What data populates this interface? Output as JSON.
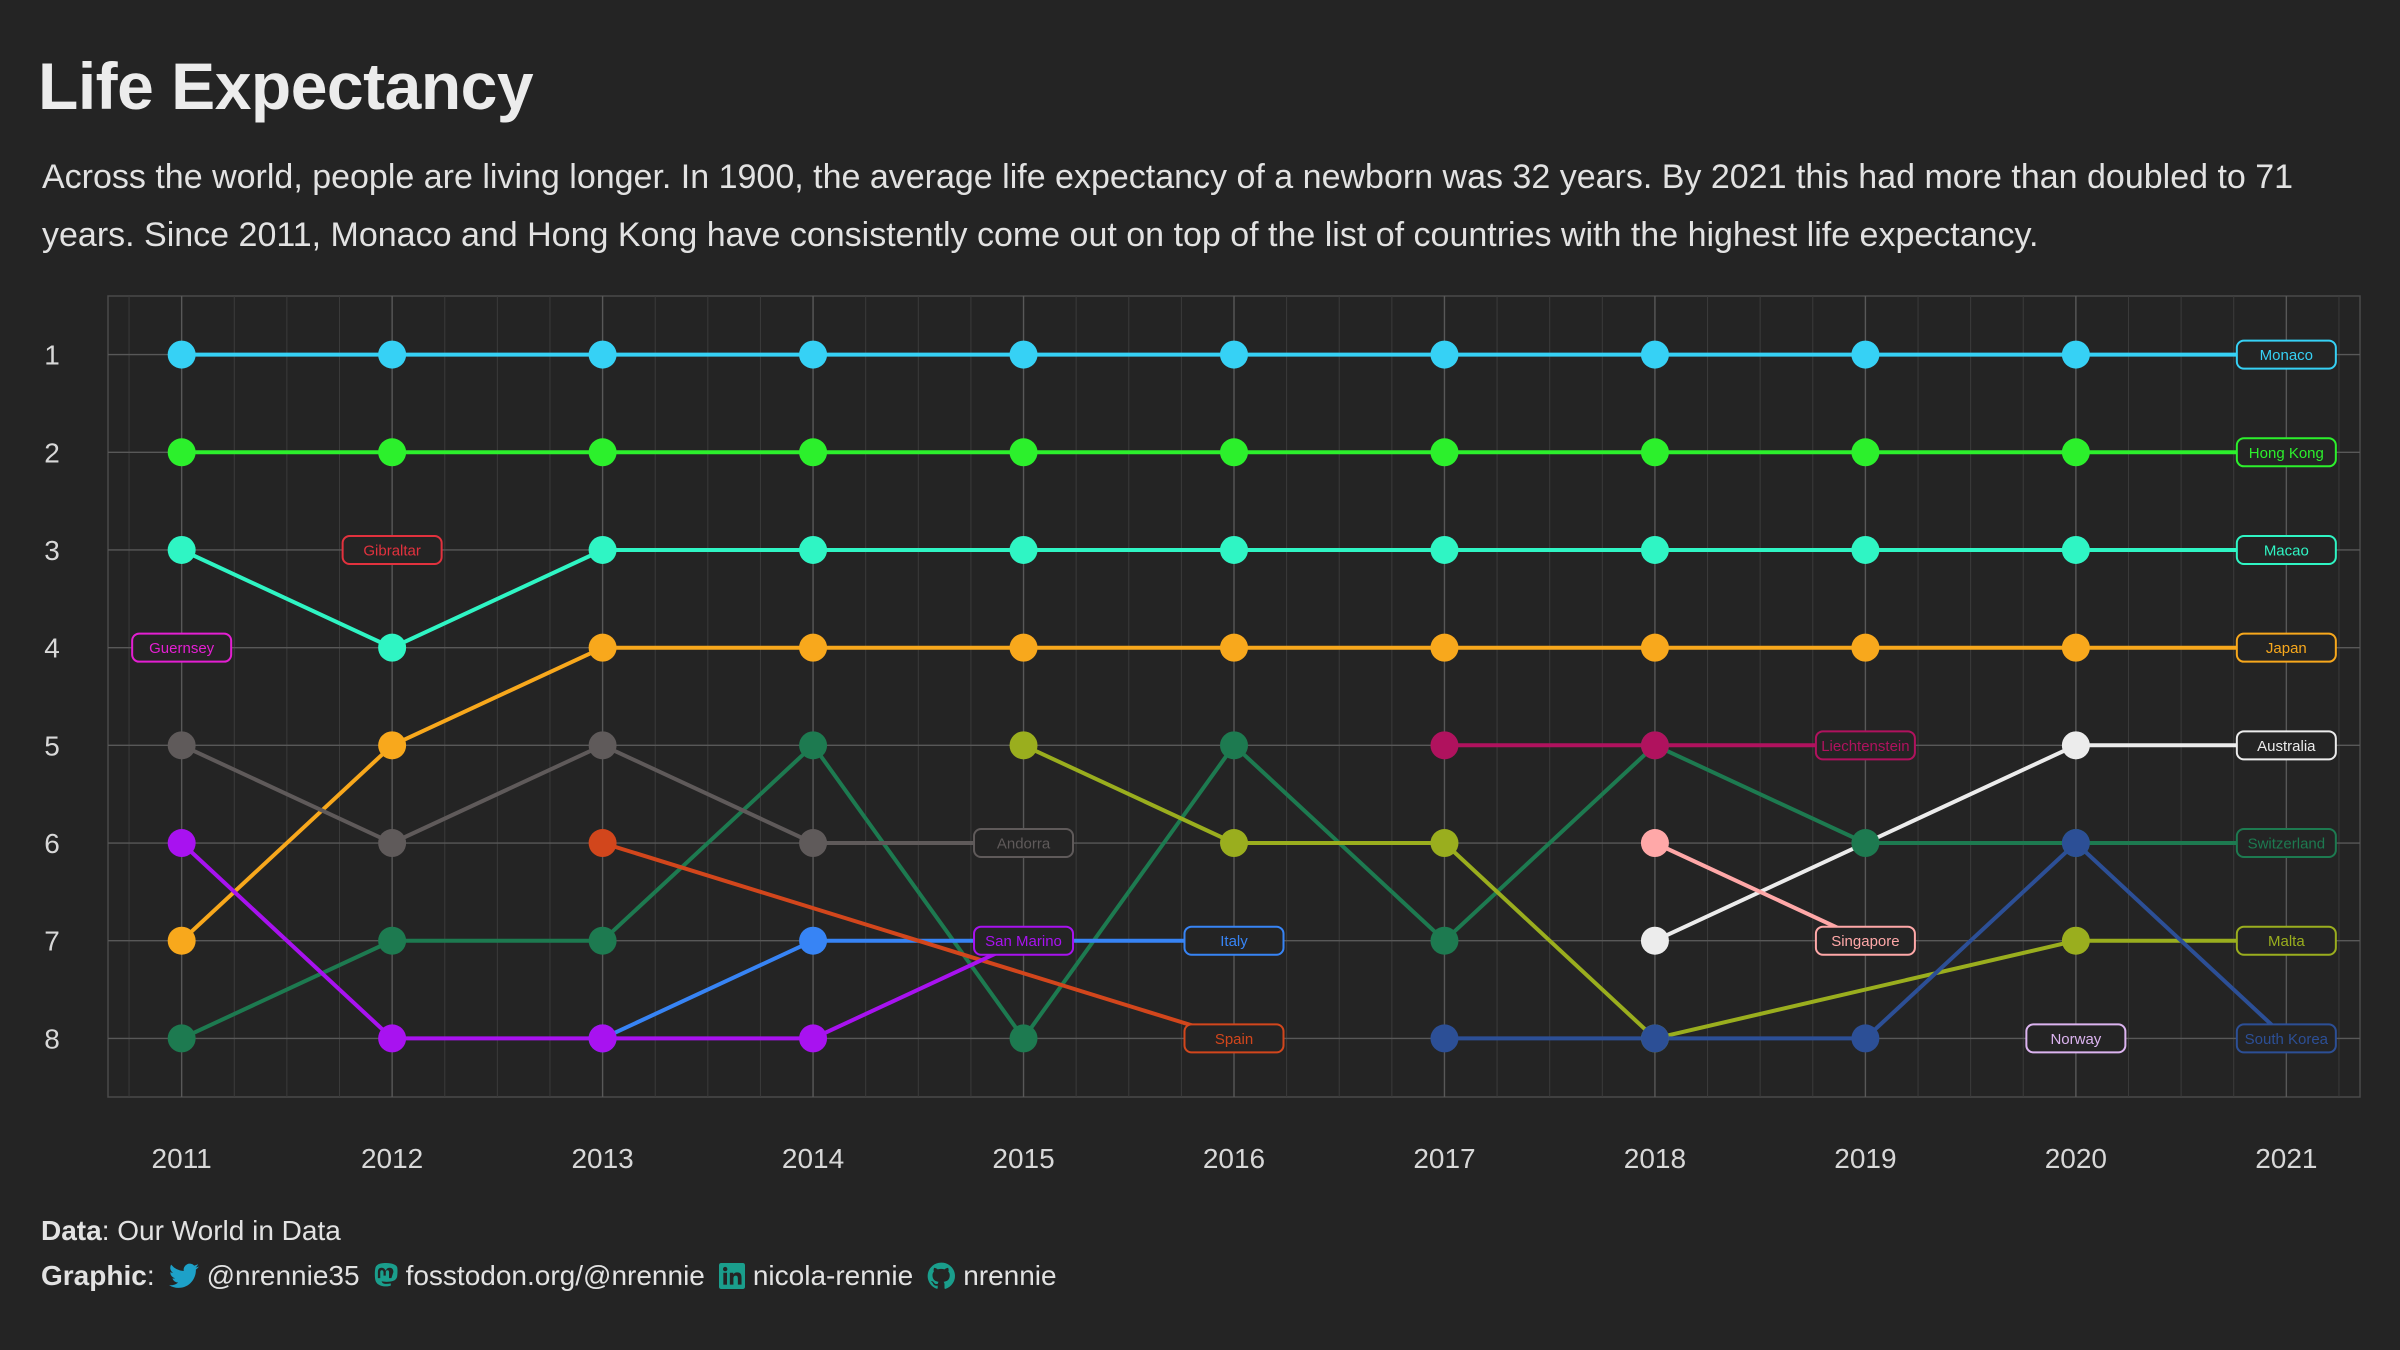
{
  "title": "Life Expectancy",
  "subtitle": "Across the world, people are living longer. In 1900, the average life expectancy of a newborn was 32 years. By 2021 this had more than doubled to 71 years. Since 2011, Monaco and Hong Kong have consistently come out on top of the list of countries with the highest life expectancy.",
  "footer": {
    "data_label": "Data",
    "data_source": ": Our World in Data",
    "graphic_label": "Graphic",
    "graphic_sep": ":",
    "twitter": "@nrennie35",
    "mastodon": "fosstodon.org/@nrennie",
    "linkedin": "nicola-rennie",
    "github": "nrennie",
    "icons": [
      "twitter-icon",
      "mastodon-icon",
      "linkedin-icon",
      "github-icon"
    ]
  },
  "chart_data": {
    "type": "line",
    "title": "Life Expectancy",
    "xlabel": "",
    "ylabel": "",
    "x": [
      2011,
      2012,
      2013,
      2014,
      2015,
      2016,
      2017,
      2018,
      2019,
      2020,
      2021
    ],
    "y_ticks": [
      1,
      2,
      3,
      4,
      5,
      6,
      7,
      8
    ],
    "xlim": [
      2010.65,
      2021.35
    ],
    "ylim": [
      8.6,
      0.4
    ],
    "y_reversed": true,
    "grid": true,
    "background": "#242424",
    "series": [
      {
        "name": "Monaco",
        "color": "#36d1f5",
        "points": [
          [
            2011,
            1
          ],
          [
            2012,
            1
          ],
          [
            2013,
            1
          ],
          [
            2014,
            1
          ],
          [
            2015,
            1
          ],
          [
            2016,
            1
          ],
          [
            2017,
            1
          ],
          [
            2018,
            1
          ],
          [
            2019,
            1
          ],
          [
            2020,
            1
          ],
          [
            2021,
            1
          ]
        ],
        "label_at": [
          2021,
          1
        ]
      },
      {
        "name": "Hong Kong",
        "color": "#2cf02c",
        "points": [
          [
            2011,
            2
          ],
          [
            2012,
            2
          ],
          [
            2013,
            2
          ],
          [
            2014,
            2
          ],
          [
            2015,
            2
          ],
          [
            2016,
            2
          ],
          [
            2017,
            2
          ],
          [
            2018,
            2
          ],
          [
            2019,
            2
          ],
          [
            2020,
            2
          ],
          [
            2021,
            2
          ]
        ],
        "label_at": [
          2021,
          2
        ]
      },
      {
        "name": "Macao",
        "color": "#2ff5c4",
        "points": [
          [
            2011,
            3
          ],
          [
            2012,
            4
          ],
          [
            2013,
            3
          ],
          [
            2014,
            3
          ],
          [
            2015,
            3
          ],
          [
            2016,
            3
          ],
          [
            2017,
            3
          ],
          [
            2018,
            3
          ],
          [
            2019,
            3
          ],
          [
            2020,
            3
          ],
          [
            2021,
            3
          ]
        ],
        "label_at": [
          2021,
          3
        ]
      },
      {
        "name": "Japan",
        "color": "#f8a81c",
        "points": [
          [
            2011,
            7
          ],
          [
            2012,
            5
          ],
          [
            2013,
            4
          ],
          [
            2014,
            4
          ],
          [
            2015,
            4
          ],
          [
            2016,
            4
          ],
          [
            2017,
            4
          ],
          [
            2018,
            4
          ],
          [
            2019,
            4
          ],
          [
            2020,
            4
          ],
          [
            2021,
            4
          ]
        ],
        "label_at": [
          2021,
          4
        ]
      },
      {
        "name": "Australia",
        "color": "#ececec",
        "points": [
          [
            2018,
            7
          ],
          [
            2020,
            5
          ],
          [
            2021,
            5
          ]
        ],
        "label_at": [
          2021,
          5
        ]
      },
      {
        "name": "Switzerland",
        "color": "#1d7a50",
        "points": [
          [
            2011,
            8
          ],
          [
            2012,
            7
          ],
          [
            2013,
            7
          ],
          [
            2014,
            5
          ],
          [
            2015,
            8
          ],
          [
            2016,
            5
          ],
          [
            2017,
            7
          ],
          [
            2018,
            5
          ],
          [
            2019,
            6
          ],
          [
            2020,
            6
          ],
          [
            2021,
            6
          ]
        ],
        "label_at": [
          2021,
          6
        ]
      },
      {
        "name": "Malta",
        "color": "#9aae1e",
        "points": [
          [
            2015,
            5
          ],
          [
            2016,
            6
          ],
          [
            2017,
            6
          ],
          [
            2018,
            8
          ],
          [
            2020,
            7
          ],
          [
            2021,
            7
          ]
        ],
        "label_at": [
          2021,
          7
        ]
      },
      {
        "name": "South Korea",
        "color": "#2c4f96",
        "points": [
          [
            2017,
            8
          ],
          [
            2018,
            8
          ],
          [
            2019,
            8
          ],
          [
            2020,
            6
          ],
          [
            2021,
            8
          ]
        ],
        "label_at": [
          2021,
          8
        ]
      },
      {
        "name": "Norway",
        "color": "#dcb4f0",
        "points": [],
        "label_at": [
          2020,
          8
        ]
      },
      {
        "name": "Singapore",
        "color": "#ffa8a8",
        "points": [
          [
            2018,
            6
          ],
          [
            2019,
            7
          ]
        ],
        "label_at": [
          2019,
          7
        ]
      },
      {
        "name": "Liechtenstein",
        "color": "#b0125e",
        "points": [
          [
            2017,
            5
          ],
          [
            2018,
            5
          ],
          [
            2019,
            5
          ]
        ],
        "label_at": [
          2019,
          5
        ]
      },
      {
        "name": "Italy",
        "color": "#3784f5",
        "points": [
          [
            2013,
            8
          ],
          [
            2014,
            7
          ],
          [
            2015,
            7
          ],
          [
            2016,
            7
          ]
        ],
        "label_at": [
          2016,
          7
        ]
      },
      {
        "name": "Spain",
        "color": "#d2461c",
        "points": [
          [
            2013,
            6
          ],
          [
            2016,
            8
          ]
        ],
        "label_at": [
          2016,
          8
        ]
      },
      {
        "name": "San Marino",
        "color": "#a812f0",
        "points": [
          [
            2011,
            6
          ],
          [
            2012,
            8
          ],
          [
            2013,
            8
          ],
          [
            2014,
            8
          ],
          [
            2015,
            7
          ]
        ],
        "label_at": [
          2015,
          7
        ]
      },
      {
        "name": "Andorra",
        "color": "#5f5a5a",
        "points": [
          [
            2011,
            5
          ],
          [
            2012,
            6
          ],
          [
            2013,
            5
          ],
          [
            2014,
            6
          ],
          [
            2015,
            6
          ]
        ],
        "label_at": [
          2015,
          6
        ]
      },
      {
        "name": "Gibraltar",
        "color": "#e2323e",
        "points": [],
        "label_at": [
          2012,
          3
        ]
      },
      {
        "name": "Guernsey",
        "color": "#e41fd2",
        "points": [],
        "label_at": [
          2011,
          4
        ]
      }
    ]
  }
}
